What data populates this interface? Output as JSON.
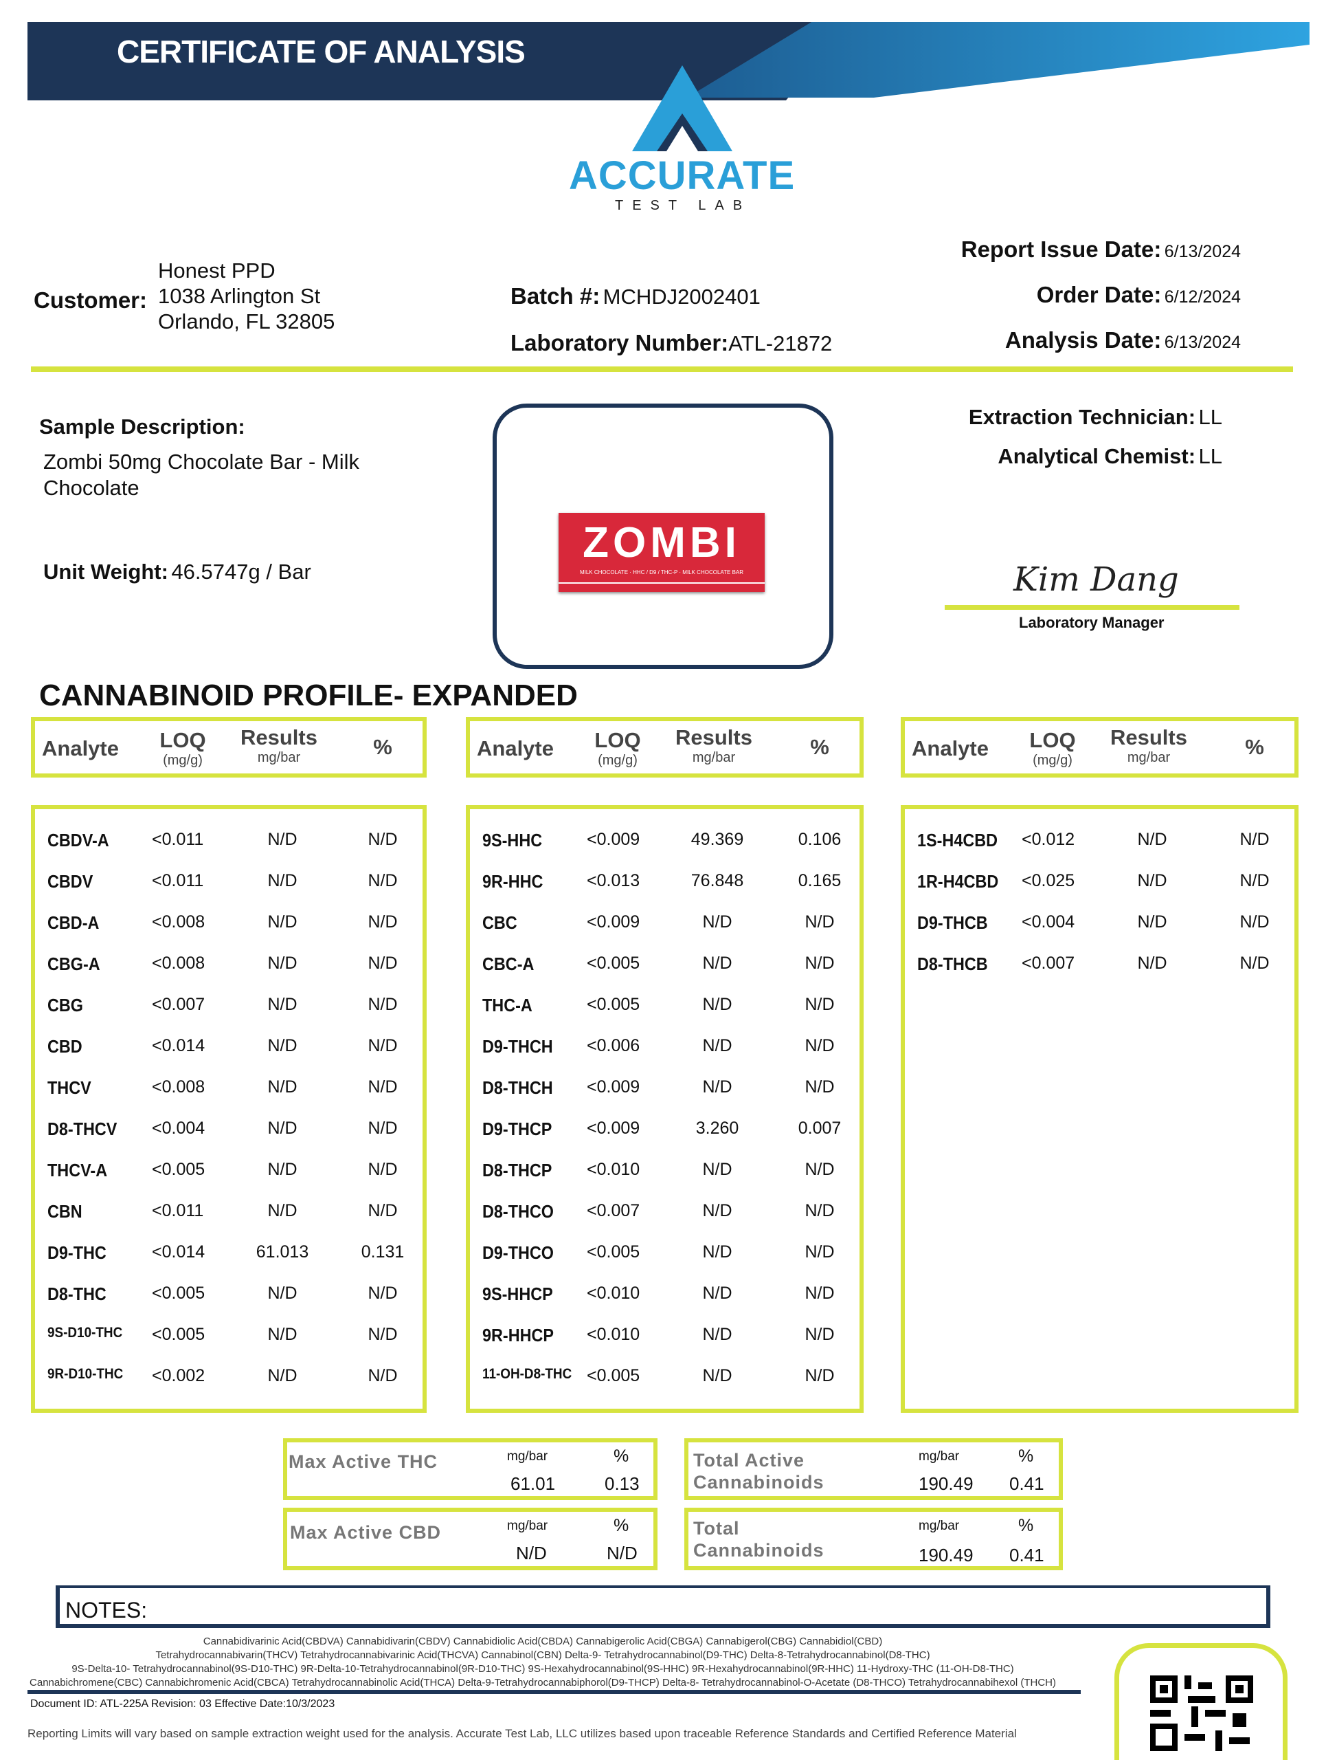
{
  "header": {
    "title": "CERTIFICATE OF ANALYSIS",
    "logo_name": "ACCURATE",
    "logo_sub": "TEST LAB"
  },
  "customer": {
    "label": "Customer:",
    "name": "Honest PPD",
    "address1": "1038 Arlington St",
    "address2": "Orlando, FL 32805"
  },
  "batch": {
    "label": "Batch #:",
    "value": "MCHDJ2002401"
  },
  "lab_number": {
    "label": "Laboratory Number:",
    "value": "ATL-21872"
  },
  "dates": {
    "report_label": "Report Issue Date:",
    "report": "6/13/2024",
    "order_label": "Order Date:",
    "order": "6/12/2024",
    "analysis_label": "Analysis Date:",
    "analysis": "6/13/2024"
  },
  "sample": {
    "label": "Sample Description:",
    "line1": "Zombi 50mg Chocolate Bar  - Milk",
    "line2": "Chocolate",
    "unit_label": "Unit Weight:",
    "unit_value": "46.5747g / Bar",
    "product_text": "ZOMBI",
    "product_sub": "MILK CHOCOLATE · HHC / D9 / THC-P · MILK CHOCOLATE BAR"
  },
  "staff": {
    "tech_label": "Extraction Technician:",
    "tech": "LL",
    "chemist_label": "Analytical Chemist:",
    "chemist": "LL",
    "signature": "Kim Dang",
    "manager_label": "Laboratory Manager"
  },
  "profile_title": "CANNABINOID PROFILE- EXPANDED",
  "table_headers": {
    "analyte": "Analyte",
    "loq": "LOQ",
    "loq_unit": "(mg/g)",
    "results": "Results",
    "results_unit": "mg/bar",
    "pct": "%"
  },
  "columns": [
    [
      [
        "CBDV-A",
        "<0.011",
        "N/D",
        "N/D"
      ],
      [
        "CBDV",
        "<0.011",
        "N/D",
        "N/D"
      ],
      [
        "CBD-A",
        "<0.008",
        "N/D",
        "N/D"
      ],
      [
        "CBG-A",
        "<0.008",
        "N/D",
        "N/D"
      ],
      [
        "CBG",
        "<0.007",
        "N/D",
        "N/D"
      ],
      [
        "CBD",
        "<0.014",
        "N/D",
        "N/D"
      ],
      [
        "THCV",
        "<0.008",
        "N/D",
        "N/D"
      ],
      [
        "D8-THCV",
        "<0.004",
        "N/D",
        "N/D"
      ],
      [
        "THCV-A",
        "<0.005",
        "N/D",
        "N/D"
      ],
      [
        "CBN",
        "<0.011",
        "N/D",
        "N/D"
      ],
      [
        "D9-THC",
        "<0.014",
        "61.013",
        "0.131"
      ],
      [
        "D8-THC",
        "<0.005",
        "N/D",
        "N/D"
      ],
      [
        "9S-D10-THC",
        "<0.005",
        "N/D",
        "N/D"
      ],
      [
        "9R-D10-THC",
        "<0.002",
        "N/D",
        "N/D"
      ]
    ],
    [
      [
        "9S-HHC",
        "<0.009",
        "49.369",
        "0.106"
      ],
      [
        "9R-HHC",
        "<0.013",
        "76.848",
        "0.165"
      ],
      [
        "CBC",
        "<0.009",
        "N/D",
        "N/D"
      ],
      [
        "CBC-A",
        "<0.005",
        "N/D",
        "N/D"
      ],
      [
        "THC-A",
        "<0.005",
        "N/D",
        "N/D"
      ],
      [
        "D9-THCH",
        "<0.006",
        "N/D",
        "N/D"
      ],
      [
        "D8-THCH",
        "<0.009",
        "N/D",
        "N/D"
      ],
      [
        "D9-THCP",
        "<0.009",
        "3.260",
        "0.007"
      ],
      [
        "D8-THCP",
        "<0.010",
        "N/D",
        "N/D"
      ],
      [
        "D8-THCO",
        "<0.007",
        "N/D",
        "N/D"
      ],
      [
        "D9-THCO",
        "<0.005",
        "N/D",
        "N/D"
      ],
      [
        "9S-HHCP",
        "<0.010",
        "N/D",
        "N/D"
      ],
      [
        "9R-HHCP",
        "<0.010",
        "N/D",
        "N/D"
      ],
      [
        "11-OH-D8-THC",
        "<0.005",
        "N/D",
        "N/D"
      ]
    ],
    [
      [
        "1S-H4CBD",
        "<0.012",
        "N/D",
        "N/D"
      ],
      [
        "1R-H4CBD",
        "<0.025",
        "N/D",
        "N/D"
      ],
      [
        "D9-THCB",
        "<0.004",
        "N/D",
        "N/D"
      ],
      [
        "D8-THCB",
        "<0.007",
        "N/D",
        "N/D"
      ]
    ]
  ],
  "summary": {
    "max_thc": {
      "label": "Max Active THC",
      "unit": "mg/bar",
      "pct_label": "%",
      "value": "61.01",
      "pct": "0.13"
    },
    "max_cbd": {
      "label": "Max Active CBD",
      "unit": "mg/bar",
      "pct_label": "%",
      "value": "N/D",
      "pct": "N/D"
    },
    "total_active": {
      "label1": "Total Active",
      "label2": "Cannabinoids",
      "unit": "mg/bar",
      "pct_label": "%",
      "value": "190.49",
      "pct": "0.41"
    },
    "total": {
      "label1": "Total",
      "label2": "Cannabinoids",
      "unit": "mg/bar",
      "pct_label": "%",
      "value": "190.49",
      "pct": "0.41"
    }
  },
  "notes": {
    "label": "NOTES:",
    "lines": [
      "Cannabidivarinic Acid(CBDVA) Cannabidivarin(CBDV) Cannabidiolic Acid(CBDA) Cannabigerolic Acid(CBGA) Cannabigerol(CBG) Cannabidiol(CBD)",
      "Tetrahydrocannabivarin(THCV) Tetrahydrocannabivarinic Acid(THCVA) Cannabinol(CBN) Delta-9- Tetrahydrocannabinol(D9-THC) Delta-8-Tetrahydrocannabinol(D8-THC)",
      "9S-Delta-10- Tetrahydrocannabinol(9S-D10-THC) 9R-Delta-10-Tetrahydrocannabinol(9R-D10-THC) 9S-Hexahydrocannabinol(9S-HHC) 9R-Hexahydrocannabinol(9R-HHC) 11-Hydroxy-THC (11-OH-D8-THC)",
      "Cannabichromene(CBC) Cannabichromenic Acid(CBCA) Tetrahydrocannabinolic Acid(THCA) Delta-9-Tetrahydrocannabiphorol(D9-THCP) Delta-8- Tetrahydrocannabinol-O-Acetate (D8-THCO) Tetrahydrocannabihexol (THCH)"
    ]
  },
  "footer": {
    "doc_id": "Document ID: ATL-225A   Revision: 03    Effective Date:10/3/2023",
    "disclaimer": "Reporting Limits will vary based on sample extraction weight used for the analysis. Accurate Test Lab, LLC utilizes based upon traceable Reference Standards and Certified Reference Material"
  },
  "colors": {
    "accent": "#d6e33f",
    "navy": "#1d3557",
    "brand_blue": "#2a9fd8"
  }
}
